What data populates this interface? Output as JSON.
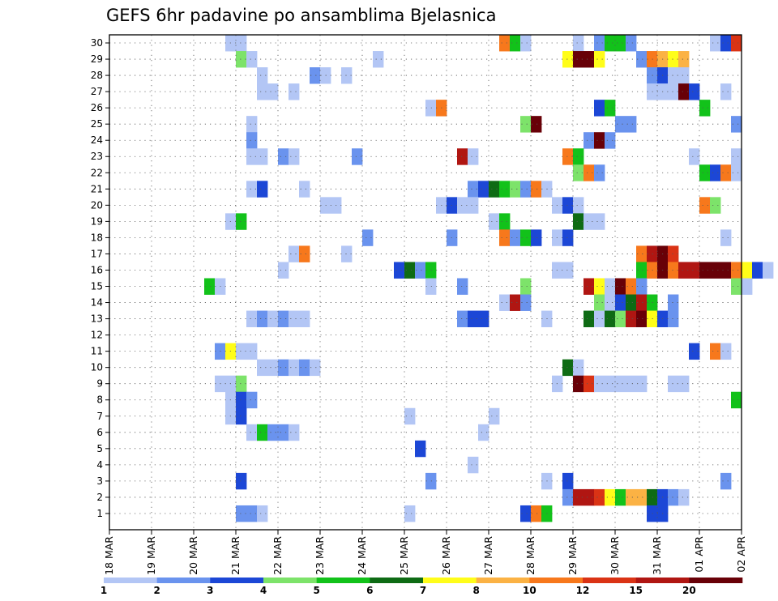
{
  "chart_data": {
    "type": "heatmap",
    "title": "GEFS 6hr padavine po ansamblima Bjelasnica",
    "xlabel": "",
    "ylabel": "",
    "x_tick_labels": [
      "18 MAR",
      "19 MAR",
      "20 MAR",
      "21 MAR",
      "22 MAR",
      "23 MAR",
      "24 MAR",
      "25 MAR",
      "26 MAR",
      "27 MAR",
      "28 MAR",
      "29 MAR",
      "30 MAR",
      "31 MAR",
      "01 APR",
      "02 APR"
    ],
    "y_tick_labels": [
      "1",
      "2",
      "3",
      "4",
      "5",
      "6",
      "7",
      "8",
      "9",
      "10",
      "11",
      "12",
      "13",
      "14",
      "15",
      "16",
      "17",
      "18",
      "19",
      "20",
      "21",
      "22",
      "23",
      "24",
      "25",
      "26",
      "27",
      "28",
      "29",
      "30"
    ],
    "y_members_range": [
      0,
      30
    ],
    "time_step_hours": 6,
    "steps_per_day": 4,
    "grid": true,
    "legend_position": "bottom",
    "colorbar": {
      "labels": [
        "1",
        "2",
        "3",
        "4",
        "5",
        "6",
        "7",
        "8",
        "10",
        "12",
        "15",
        "20"
      ],
      "colors": [
        "#b3c6f5",
        "#6a93ee",
        "#1c47d6",
        "#7de36a",
        "#12c21a",
        "#0e6b14",
        "#fffd19",
        "#fbb244",
        "#f7781c",
        "#da3315",
        "#b01612",
        "#680007"
      ]
    },
    "cells_note": "each cell: [member_row, start_step_from_18MAR_00z, span_steps, color_index]",
    "cells": [
      [
        30,
        11,
        2,
        1
      ],
      [
        30,
        37,
        1,
        9
      ],
      [
        30,
        38,
        1,
        5
      ],
      [
        30,
        39,
        1,
        1
      ],
      [
        30,
        44,
        1,
        1
      ],
      [
        30,
        46,
        1,
        2
      ],
      [
        30,
        47,
        2,
        5
      ],
      [
        30,
        49,
        1,
        2
      ],
      [
        30,
        57,
        1,
        1
      ],
      [
        30,
        58,
        1,
        3
      ],
      [
        30,
        59,
        1,
        10
      ],
      [
        29,
        12,
        1,
        4
      ],
      [
        29,
        13,
        1,
        1
      ],
      [
        29,
        25,
        1,
        1
      ],
      [
        29,
        43,
        1,
        7
      ],
      [
        29,
        44,
        2,
        12
      ],
      [
        29,
        46,
        1,
        7
      ],
      [
        29,
        50,
        1,
        2
      ],
      [
        29,
        51,
        1,
        9
      ],
      [
        29,
        52,
        1,
        8
      ],
      [
        29,
        53,
        1,
        7
      ],
      [
        29,
        54,
        1,
        8
      ],
      [
        28,
        14,
        1,
        1
      ],
      [
        28,
        19,
        1,
        2
      ],
      [
        28,
        20,
        1,
        1
      ],
      [
        28,
        22,
        1,
        1
      ],
      [
        28,
        51,
        1,
        2
      ],
      [
        28,
        52,
        1,
        3
      ],
      [
        28,
        53,
        2,
        1
      ],
      [
        27,
        14,
        2,
        1
      ],
      [
        27,
        17,
        1,
        1
      ],
      [
        27,
        51,
        3,
        1
      ],
      [
        27,
        54,
        1,
        12
      ],
      [
        27,
        55,
        1,
        3
      ],
      [
        27,
        58,
        1,
        1
      ],
      [
        26,
        30,
        1,
        1
      ],
      [
        26,
        31,
        1,
        9
      ],
      [
        26,
        46,
        1,
        3
      ],
      [
        26,
        47,
        1,
        5
      ],
      [
        26,
        56,
        1,
        5
      ],
      [
        25,
        13,
        1,
        1
      ],
      [
        25,
        39,
        1,
        4
      ],
      [
        25,
        40,
        1,
        12
      ],
      [
        25,
        48,
        2,
        2
      ],
      [
        25,
        59,
        1,
        2
      ],
      [
        24,
        13,
        1,
        2
      ],
      [
        24,
        45,
        1,
        2
      ],
      [
        24,
        46,
        1,
        12
      ],
      [
        24,
        47,
        1,
        2
      ],
      [
        23,
        13,
        2,
        1
      ],
      [
        23,
        16,
        1,
        2
      ],
      [
        23,
        17,
        1,
        1
      ],
      [
        23,
        23,
        1,
        2
      ],
      [
        23,
        33,
        1,
        11
      ],
      [
        23,
        34,
        1,
        1
      ],
      [
        23,
        43,
        1,
        9
      ],
      [
        23,
        44,
        1,
        5
      ],
      [
        23,
        55,
        1,
        1
      ],
      [
        23,
        59,
        1,
        1
      ],
      [
        22,
        44,
        1,
        4
      ],
      [
        22,
        45,
        1,
        9
      ],
      [
        22,
        46,
        1,
        2
      ],
      [
        22,
        56,
        1,
        5
      ],
      [
        22,
        57,
        1,
        3
      ],
      [
        22,
        58,
        1,
        9
      ],
      [
        22,
        59,
        1,
        1
      ],
      [
        21,
        13,
        1,
        1
      ],
      [
        21,
        14,
        1,
        3
      ],
      [
        21,
        18,
        1,
        1
      ],
      [
        21,
        34,
        1,
        2
      ],
      [
        21,
        35,
        1,
        3
      ],
      [
        21,
        36,
        1,
        6
      ],
      [
        21,
        37,
        1,
        5
      ],
      [
        21,
        38,
        1,
        4
      ],
      [
        21,
        39,
        1,
        2
      ],
      [
        21,
        40,
        1,
        9
      ],
      [
        21,
        41,
        1,
        1
      ],
      [
        20,
        20,
        2,
        1
      ],
      [
        20,
        31,
        1,
        1
      ],
      [
        20,
        32,
        1,
        3
      ],
      [
        20,
        33,
        2,
        1
      ],
      [
        20,
        42,
        1,
        1
      ],
      [
        20,
        43,
        1,
        3
      ],
      [
        20,
        44,
        1,
        1
      ],
      [
        20,
        56,
        1,
        9
      ],
      [
        20,
        57,
        1,
        4
      ],
      [
        19,
        11,
        1,
        1
      ],
      [
        19,
        12,
        1,
        5
      ],
      [
        19,
        36,
        1,
        1
      ],
      [
        19,
        37,
        1,
        5
      ],
      [
        19,
        44,
        1,
        6
      ],
      [
        19,
        45,
        2,
        1
      ],
      [
        18,
        24,
        1,
        2
      ],
      [
        18,
        32,
        1,
        2
      ],
      [
        18,
        37,
        1,
        9
      ],
      [
        18,
        38,
        1,
        2
      ],
      [
        18,
        39,
        1,
        5
      ],
      [
        18,
        40,
        1,
        3
      ],
      [
        18,
        42,
        1,
        1
      ],
      [
        18,
        43,
        1,
        3
      ],
      [
        18,
        58,
        1,
        1
      ],
      [
        17,
        17,
        1,
        1
      ],
      [
        17,
        18,
        1,
        9
      ],
      [
        17,
        22,
        1,
        1
      ],
      [
        17,
        50,
        1,
        9
      ],
      [
        17,
        51,
        1,
        11
      ],
      [
        17,
        52,
        1,
        12
      ],
      [
        17,
        53,
        1,
        10
      ],
      [
        16,
        16,
        1,
        1
      ],
      [
        16,
        27,
        1,
        3
      ],
      [
        16,
        28,
        1,
        6
      ],
      [
        16,
        29,
        1,
        2
      ],
      [
        16,
        30,
        1,
        5
      ],
      [
        16,
        42,
        2,
        1
      ],
      [
        16,
        50,
        1,
        5
      ],
      [
        16,
        51,
        1,
        9
      ],
      [
        16,
        52,
        1,
        12
      ],
      [
        16,
        53,
        1,
        9
      ],
      [
        16,
        54,
        2,
        11
      ],
      [
        16,
        56,
        3,
        12
      ],
      [
        16,
        59,
        1,
        9
      ],
      [
        16,
        60,
        1,
        7
      ],
      [
        16,
        61,
        1,
        3
      ],
      [
        16,
        62,
        1,
        1
      ],
      [
        15,
        9,
        1,
        5
      ],
      [
        15,
        10,
        1,
        1
      ],
      [
        15,
        30,
        1,
        1
      ],
      [
        15,
        33,
        1,
        2
      ],
      [
        15,
        39,
        1,
        4
      ],
      [
        15,
        45,
        1,
        11
      ],
      [
        15,
        46,
        1,
        7
      ],
      [
        15,
        47,
        1,
        1
      ],
      [
        15,
        48,
        1,
        12
      ],
      [
        15,
        49,
        1,
        9
      ],
      [
        15,
        50,
        1,
        2
      ],
      [
        15,
        59,
        1,
        4
      ],
      [
        15,
        60,
        1,
        1
      ],
      [
        14,
        37,
        1,
        1
      ],
      [
        14,
        38,
        1,
        11
      ],
      [
        14,
        39,
        1,
        2
      ],
      [
        14,
        46,
        1,
        4
      ],
      [
        14,
        47,
        1,
        1
      ],
      [
        14,
        48,
        1,
        3
      ],
      [
        14,
        49,
        1,
        6
      ],
      [
        14,
        50,
        1,
        11
      ],
      [
        14,
        51,
        1,
        5
      ],
      [
        14,
        53,
        1,
        2
      ],
      [
        13,
        13,
        1,
        1
      ],
      [
        13,
        14,
        1,
        2
      ],
      [
        13,
        15,
        1,
        1
      ],
      [
        13,
        16,
        1,
        2
      ],
      [
        13,
        17,
        2,
        1
      ],
      [
        13,
        33,
        1,
        2
      ],
      [
        13,
        34,
        2,
        3
      ],
      [
        13,
        41,
        1,
        1
      ],
      [
        13,
        45,
        1,
        6
      ],
      [
        13,
        46,
        1,
        1
      ],
      [
        13,
        47,
        1,
        6
      ],
      [
        13,
        48,
        1,
        4
      ],
      [
        13,
        49,
        1,
        11
      ],
      [
        13,
        50,
        1,
        12
      ],
      [
        13,
        51,
        1,
        7
      ],
      [
        13,
        52,
        1,
        3
      ],
      [
        13,
        53,
        1,
        2
      ],
      [
        11,
        10,
        1,
        2
      ],
      [
        11,
        11,
        1,
        7
      ],
      [
        11,
        12,
        2,
        1
      ],
      [
        11,
        55,
        1,
        3
      ],
      [
        11,
        57,
        1,
        9
      ],
      [
        11,
        58,
        1,
        1
      ],
      [
        10,
        14,
        2,
        1
      ],
      [
        10,
        16,
        1,
        2
      ],
      [
        10,
        17,
        1,
        1
      ],
      [
        10,
        18,
        1,
        2
      ],
      [
        10,
        19,
        1,
        1
      ],
      [
        10,
        43,
        1,
        6
      ],
      [
        10,
        44,
        1,
        1
      ],
      [
        9,
        10,
        2,
        1
      ],
      [
        9,
        12,
        1,
        4
      ],
      [
        9,
        42,
        1,
        1
      ],
      [
        9,
        44,
        1,
        12
      ],
      [
        9,
        45,
        1,
        10
      ],
      [
        9,
        46,
        5,
        1
      ],
      [
        9,
        53,
        2,
        1
      ],
      [
        8,
        11,
        1,
        1
      ],
      [
        8,
        12,
        1,
        3
      ],
      [
        8,
        13,
        1,
        2
      ],
      [
        8,
        59,
        1,
        5
      ],
      [
        7,
        11,
        1,
        1
      ],
      [
        7,
        12,
        1,
        3
      ],
      [
        7,
        28,
        1,
        1
      ],
      [
        7,
        36,
        1,
        1
      ],
      [
        6,
        13,
        1,
        1
      ],
      [
        6,
        14,
        1,
        5
      ],
      [
        6,
        15,
        2,
        2
      ],
      [
        6,
        17,
        1,
        1
      ],
      [
        6,
        35,
        1,
        1
      ],
      [
        5,
        29,
        1,
        3
      ],
      [
        4,
        34,
        1,
        1
      ],
      [
        3,
        12,
        1,
        3
      ],
      [
        3,
        30,
        1,
        2
      ],
      [
        3,
        41,
        1,
        1
      ],
      [
        3,
        43,
        1,
        3
      ],
      [
        3,
        58,
        1,
        2
      ],
      [
        2,
        43,
        1,
        2
      ],
      [
        2,
        44,
        2,
        11
      ],
      [
        2,
        46,
        1,
        10
      ],
      [
        2,
        47,
        1,
        7
      ],
      [
        2,
        48,
        1,
        5
      ],
      [
        2,
        49,
        2,
        8
      ],
      [
        2,
        51,
        1,
        6
      ],
      [
        2,
        52,
        1,
        3
      ],
      [
        2,
        53,
        1,
        2
      ],
      [
        2,
        54,
        1,
        1
      ],
      [
        1,
        12,
        2,
        2
      ],
      [
        1,
        14,
        1,
        1
      ],
      [
        1,
        28,
        1,
        1
      ],
      [
        1,
        39,
        1,
        3
      ],
      [
        1,
        40,
        1,
        9
      ],
      [
        1,
        41,
        1,
        5
      ],
      [
        1,
        51,
        2,
        3
      ]
    ]
  }
}
